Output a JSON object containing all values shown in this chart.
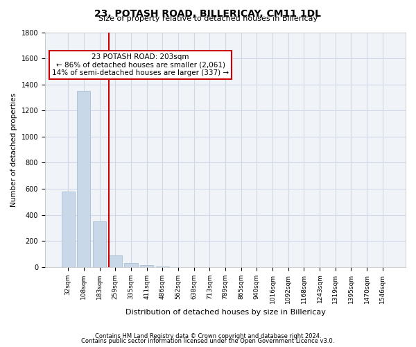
{
  "title": "23, POTASH ROAD, BILLERICAY, CM11 1DL",
  "subtitle": "Size of property relative to detached houses in Billericay",
  "xlabel": "Distribution of detached houses by size in Billericay",
  "ylabel": "Number of detached properties",
  "footer_line1": "Contains HM Land Registry data © Crown copyright and database right 2024.",
  "footer_line2": "Contains public sector information licensed under the Open Government Licence v3.0.",
  "bin_labels": [
    "32sqm",
    "108sqm",
    "183sqm",
    "259sqm",
    "335sqm",
    "411sqm",
    "486sqm",
    "562sqm",
    "638sqm",
    "713sqm",
    "789sqm",
    "865sqm",
    "940sqm",
    "1016sqm",
    "1092sqm",
    "1168sqm",
    "1243sqm",
    "1319sqm",
    "1395sqm",
    "1470sqm",
    "1546sqm"
  ],
  "bar_values": [
    580,
    1350,
    350,
    90,
    30,
    15,
    5,
    1,
    0,
    0,
    0,
    0,
    0,
    0,
    0,
    0,
    0,
    0,
    0,
    0,
    0
  ],
  "bar_color": "#c8d8e8",
  "bar_edge_color": "#a0b8cc",
  "grid_color": "#d0d8e8",
  "background_color": "#f0f4f8",
  "property_line_x": 2.58,
  "property_line_color": "#cc0000",
  "annotation_text": "23 POTASH ROAD: 203sqm\n← 86% of detached houses are smaller (2,061)\n14% of semi-detached houses are larger (337) →",
  "annotation_box_color": "#cc0000",
  "ylim": [
    0,
    1800
  ],
  "yticks": [
    0,
    200,
    400,
    600,
    800,
    1000,
    1200,
    1400,
    1600,
    1800
  ]
}
